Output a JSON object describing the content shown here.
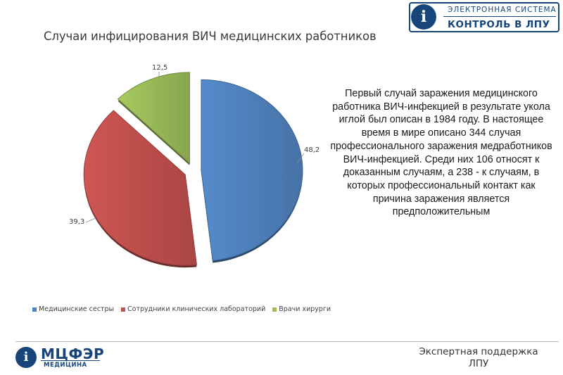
{
  "chart_data": {
    "type": "pie",
    "title": "Случаи инфицирования ВИЧ медицинских работников",
    "slices": [
      {
        "name": "Медицинские сестры",
        "value": 48.2,
        "label": "48,2",
        "color": "#4f81bd"
      },
      {
        "name": "Сотрудники клинических лабораторий",
        "value": 39.3,
        "label": "39,3",
        "color": "#c0504d"
      },
      {
        "name": "Врачи хирурги",
        "value": 12.5,
        "label": "12,5",
        "color": "#9bbb59"
      }
    ],
    "legend_position": "bottom"
  },
  "description": "Первый случай заражения медицинского работника ВИЧ-инфекцией в результате укола иглой был описан в 1984 году. В настоящее время в мире описано 344 случая профессионального заражения медработников ВИЧ-инфекцией. Среди них 106 относят к доказанным случаям, а 238 - к случаям, в которых профессиональный контакт как причина заражения является предположительным",
  "logo_top": {
    "line1": "ЭЛЕКТРОННАЯ СИСТЕМА",
    "line2": "КОНТРОЛЬ В ЛПУ",
    "glyph": "i"
  },
  "logo_bottom": {
    "name": "МЦФЭР",
    "sub": "МЕДИЦИНА",
    "glyph": "i"
  },
  "footer": {
    "tagline": "Экспертная поддержка ЛПУ"
  }
}
